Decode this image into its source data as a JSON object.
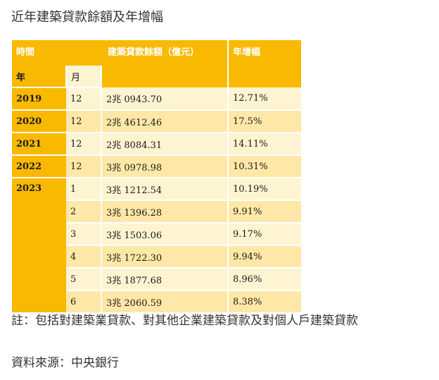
{
  "title": "近年建築貸款餘額及年增幅",
  "table": {
    "headers": {
      "time": "時間",
      "balance": "建築貸款餘額（億元）",
      "growth": "年增幅",
      "year": "年",
      "month": "月"
    },
    "rows": [
      {
        "year": "2019",
        "month": "12",
        "balance": "2兆 0943.70",
        "growth": "12.71%"
      },
      {
        "year": "2020",
        "month": "12",
        "balance": "2兆 4612.46",
        "growth": "17.5%"
      },
      {
        "year": "2021",
        "month": "12",
        "balance": "2兆 8084.31",
        "growth": "14.11%"
      },
      {
        "year": "2022",
        "month": "12",
        "balance": "3兆 0978.98",
        "growth": "10.31%"
      },
      {
        "year": "2023",
        "month": "1",
        "balance": "3兆 1212.54",
        "growth": "10.19%"
      },
      {
        "year": "",
        "month": "2",
        "balance": "3兆 1396.28",
        "growth": "9.91%"
      },
      {
        "year": "",
        "month": "3",
        "balance": "3兆 1503.06",
        "growth": "9.17%"
      },
      {
        "year": "",
        "month": "4",
        "balance": "3兆 1722.30",
        "growth": "9.94%"
      },
      {
        "year": "",
        "month": "5",
        "balance": "3兆 1877.68",
        "growth": "8.96%"
      },
      {
        "year": "",
        "month": "6",
        "balance": "3兆 2060.59",
        "growth": "8.38%"
      }
    ]
  },
  "note": "註：包括對建築業貸款、對其他企業建築貸款及對個人戶建築貸款",
  "source": "資料來源：中央銀行"
}
